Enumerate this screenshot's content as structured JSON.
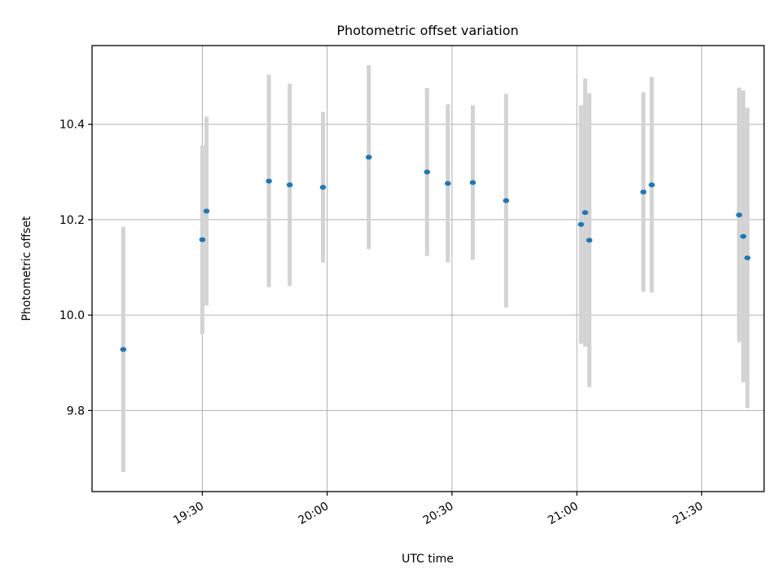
{
  "chart_data": {
    "type": "scatter",
    "title": "Photometric offset variation",
    "xlabel": "UTC time",
    "ylabel": "Photometric offset",
    "x_is_time": true,
    "xlim": [
      "19:03:30",
      "21:45:00"
    ],
    "ylim": [
      9.63,
      10.565
    ],
    "grid": true,
    "x_ticks": [
      {
        "value": "19:30",
        "label": "19:30"
      },
      {
        "value": "20:00",
        "label": "20:00"
      },
      {
        "value": "20:30",
        "label": "20:30"
      },
      {
        "value": "21:00",
        "label": "21:00"
      },
      {
        "value": "21:30",
        "label": "21:30"
      }
    ],
    "y_ticks": [
      {
        "value": 9.8,
        "label": "9.8"
      },
      {
        "value": 10.0,
        "label": "10.0"
      },
      {
        "value": 10.2,
        "label": "10.2"
      },
      {
        "value": 10.4,
        "label": "10.4"
      }
    ],
    "colors": {
      "point": "#1f77b4",
      "errorbar": "#d3d3d3",
      "grid": "#b0b0b0"
    },
    "series": [
      {
        "points": [
          {
            "x": "19:11",
            "y": 9.928,
            "err": 0.257
          },
          {
            "x": "19:30",
            "y": 10.158,
            "err": 0.198
          },
          {
            "x": "19:31",
            "y": 10.218,
            "err": 0.198
          },
          {
            "x": "19:46",
            "y": 10.281,
            "err": 0.223
          },
          {
            "x": "19:51",
            "y": 10.273,
            "err": 0.212
          },
          {
            "x": "19:59",
            "y": 10.268,
            "err": 0.158
          },
          {
            "x": "20:10",
            "y": 10.331,
            "err": 0.193
          },
          {
            "x": "20:24",
            "y": 10.3,
            "err": 0.176
          },
          {
            "x": "20:29",
            "y": 10.276,
            "err": 0.166
          },
          {
            "x": "20:35",
            "y": 10.278,
            "err": 0.162
          },
          {
            "x": "20:43",
            "y": 10.24,
            "err": 0.224
          },
          {
            "x": "21:01",
            "y": 10.19,
            "err": 0.25
          },
          {
            "x": "21:02",
            "y": 10.215,
            "err": 0.281
          },
          {
            "x": "21:03",
            "y": 10.157,
            "err": 0.308
          },
          {
            "x": "21:16",
            "y": 10.258,
            "err": 0.209
          },
          {
            "x": "21:18",
            "y": 10.273,
            "err": 0.226
          },
          {
            "x": "21:39",
            "y": 10.21,
            "err": 0.267
          },
          {
            "x": "21:40",
            "y": 10.165,
            "err": 0.306
          },
          {
            "x": "21:41",
            "y": 10.12,
            "err": 0.315
          }
        ]
      }
    ]
  }
}
